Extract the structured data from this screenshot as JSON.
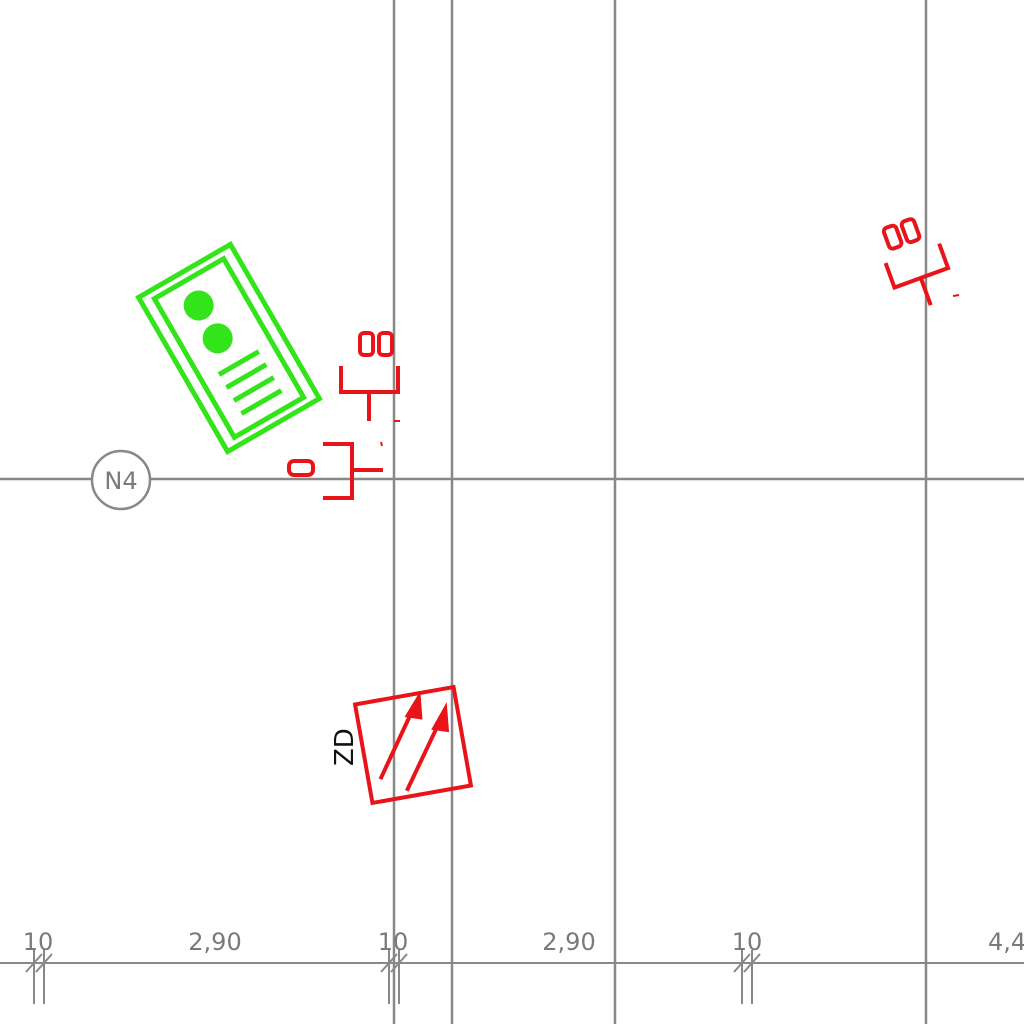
{
  "grid_label": {
    "text": "N4"
  },
  "dimensions": [
    {
      "text": "10"
    },
    {
      "text": "2,90"
    },
    {
      "text": "10"
    },
    {
      "text": "2,90"
    },
    {
      "text": "10"
    },
    {
      "text": "4,4"
    }
  ],
  "symbols": {
    "signal_head": {
      "icon": "traffic-signal-head-icon",
      "color": "#33e41a"
    },
    "pedestrian_signal_1": {
      "icon": "pedestrian-signal-icon",
      "color": "#e8141a"
    },
    "pedestrian_signal_2": {
      "icon": "pedestrian-signal-icon",
      "color": "#e8141a"
    },
    "side_signal": {
      "icon": "single-lamp-signal-icon",
      "color": "#e8141a"
    },
    "lane_sign": {
      "icon": "direction-arrows-sign-icon",
      "color": "#e8141a",
      "label": "ZD"
    }
  },
  "colors": {
    "grid": "#888888",
    "green": "#33e41a",
    "red": "#e8141a",
    "label": "#7a7a7a"
  }
}
